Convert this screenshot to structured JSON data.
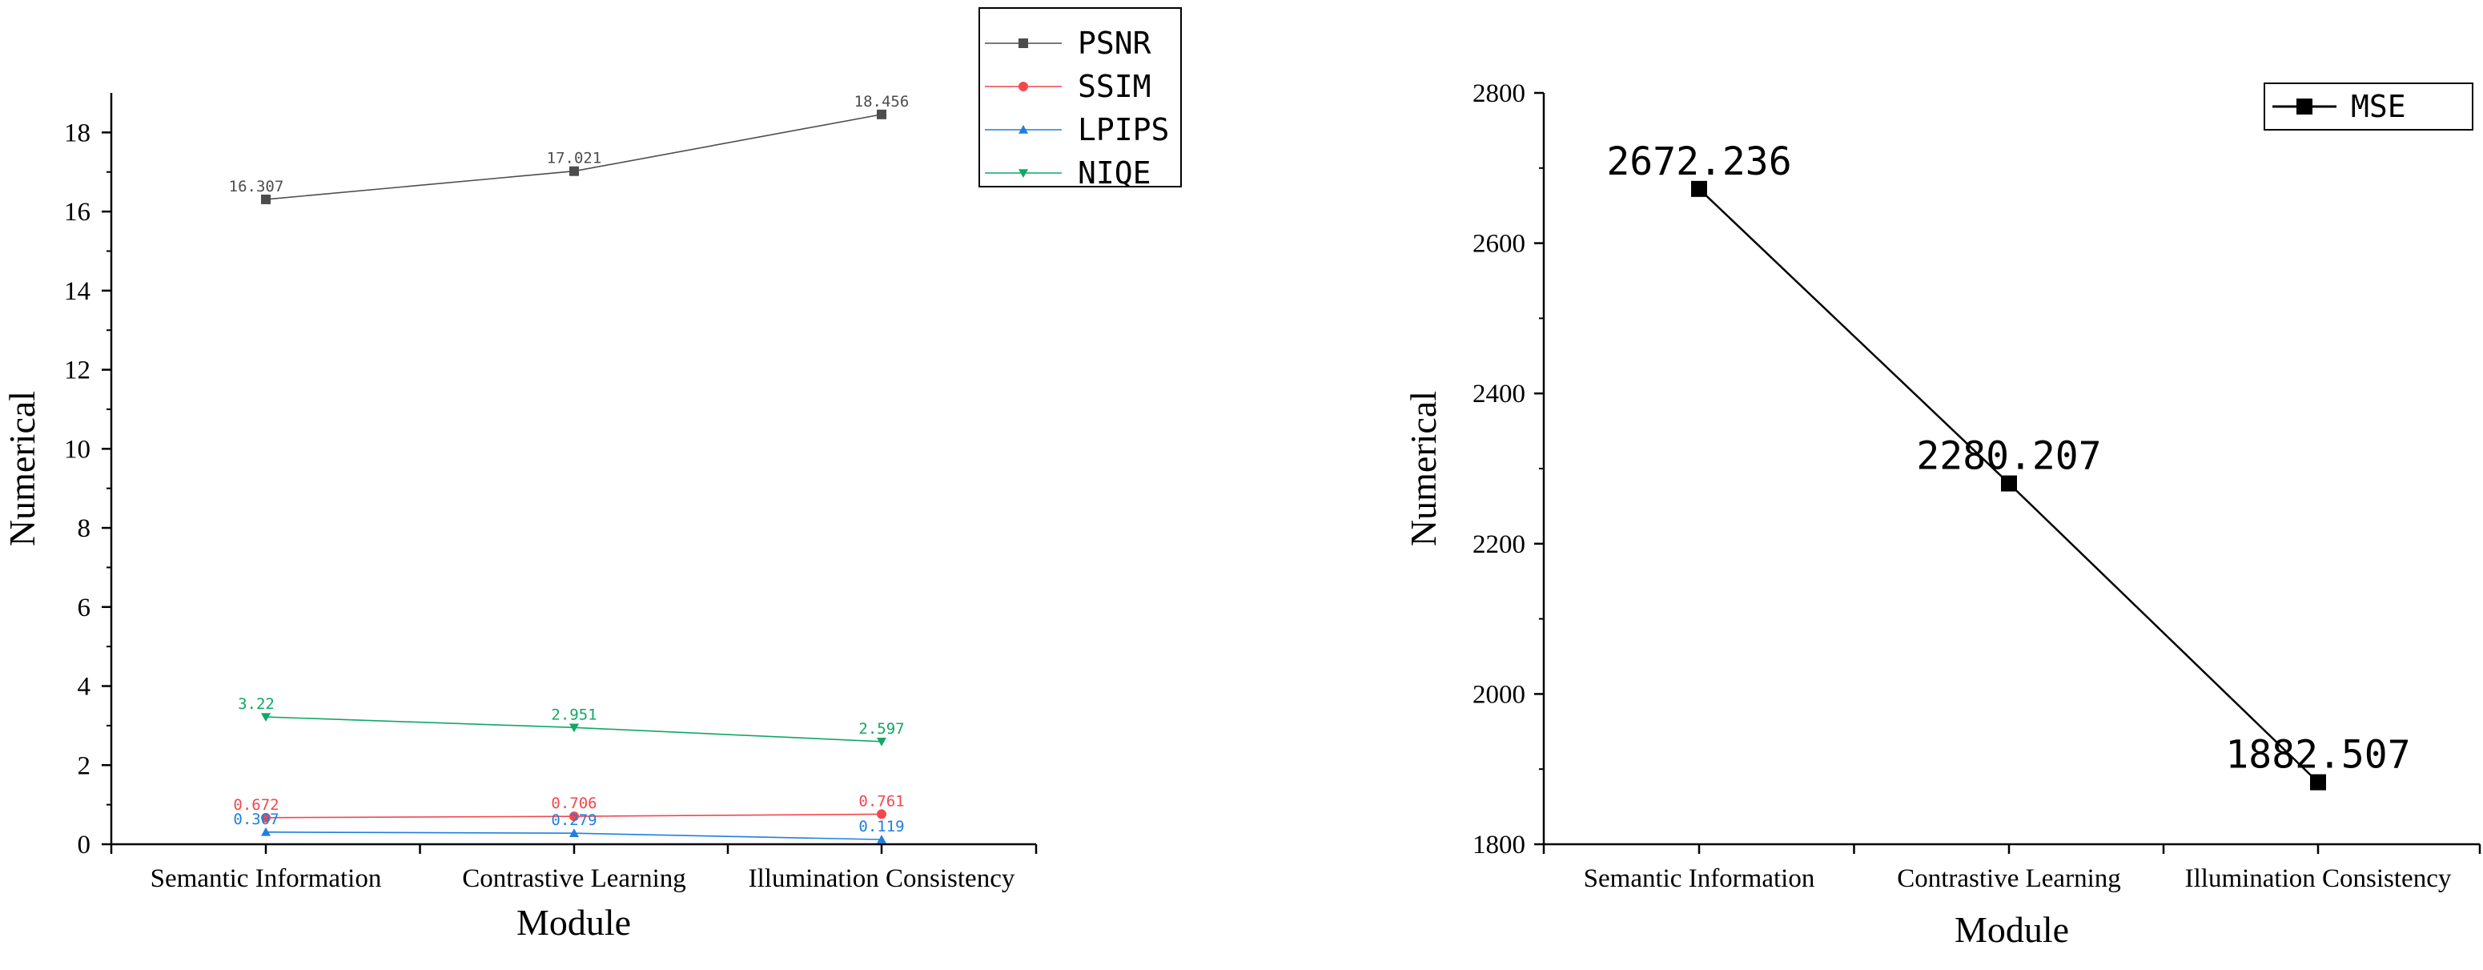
{
  "chart_data": [
    {
      "type": "line",
      "title": "",
      "xlabel": "Module",
      "ylabel": "Numerical",
      "categories": [
        "Semantic Information",
        "Contrastive Learning",
        "Illumination Consistency"
      ],
      "ylim": [
        0,
        19
      ],
      "yticks": [
        "0",
        "2",
        "4",
        "6",
        "8",
        "10",
        "12",
        "14",
        "16",
        "18"
      ],
      "grid": false,
      "legend_position": "top-right",
      "series": [
        {
          "name": "PSNR",
          "values": [
            16.307,
            17.021,
            18.456
          ],
          "labels": [
            "16.307",
            "17.021",
            "18.456"
          ],
          "color": "#4d4d4d",
          "marker": "square"
        },
        {
          "name": "SSIM",
          "values": [
            0.672,
            0.706,
            0.761
          ],
          "labels": [
            "0.672",
            "0.706",
            "0.761"
          ],
          "color": "#f3474e",
          "marker": "circle"
        },
        {
          "name": "LPIPS",
          "values": [
            0.307,
            0.279,
            0.119
          ],
          "labels": [
            "0.307",
            "0.279",
            "0.119"
          ],
          "color": "#1e7fe0",
          "marker": "triangle-up"
        },
        {
          "name": "NIQE",
          "values": [
            3.22,
            2.951,
            2.597
          ],
          "labels": [
            "3.22",
            "2.951",
            "2.597"
          ],
          "color": "#0fa864",
          "marker": "triangle-down"
        }
      ]
    },
    {
      "type": "line",
      "title": "",
      "xlabel": "Module",
      "ylabel": "Numerical",
      "categories": [
        "Semantic Information",
        "Contrastive Learning",
        "Illumination Consistency"
      ],
      "ylim": [
        1800,
        2800
      ],
      "yticks": [
        "1800",
        "2000",
        "2200",
        "2400",
        "2600",
        "2800"
      ],
      "grid": false,
      "legend_position": "top-right",
      "series": [
        {
          "name": "MSE",
          "values": [
            2672.236,
            2280.207,
            1882.507
          ],
          "labels": [
            "2672.236",
            "2280.207",
            "1882.507"
          ],
          "color": "#000000",
          "marker": "square"
        }
      ]
    }
  ]
}
